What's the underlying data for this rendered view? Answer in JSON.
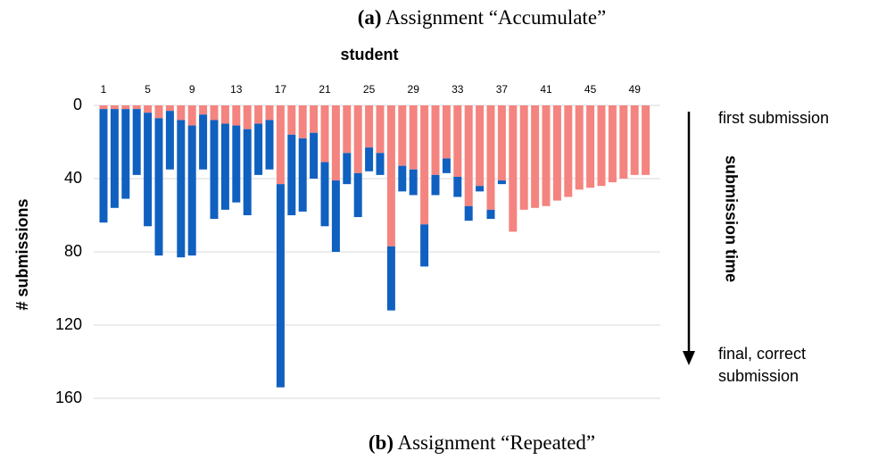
{
  "chart_data": {
    "type": "stacked_bar",
    "caption_top": {
      "label": "(a)",
      "text": "Assignment “Accumulate”"
    },
    "caption_bottom": {
      "label": "(b)",
      "text": "Assignment “Repeated”"
    },
    "x_label": "student",
    "y_label": "# submissions",
    "side_label": "submission time",
    "side_top": "first submission",
    "side_bottom": [
      "final, correct",
      "submission"
    ],
    "y_inverted": true,
    "grid": true,
    "categories": [
      "1",
      null,
      null,
      null,
      "5",
      null,
      null,
      null,
      "9",
      null,
      null,
      null,
      "13",
      null,
      null,
      null,
      "17",
      null,
      null,
      null,
      "21",
      null,
      null,
      null,
      "25",
      null,
      null,
      null,
      "29",
      null,
      null,
      null,
      "33",
      null,
      null,
      null,
      "37",
      null,
      null,
      null,
      "41",
      null,
      null,
      null,
      "45",
      null,
      null,
      null,
      "49",
      null
    ],
    "series": [
      {
        "color": "#f4847f",
        "values": [
          2,
          2,
          2,
          2,
          4,
          7,
          3,
          8,
          11,
          5,
          8,
          10,
          11,
          13,
          10,
          8,
          43,
          16,
          18,
          15,
          31,
          41,
          26,
          37,
          23,
          26,
          77,
          33,
          35,
          65,
          38,
          29,
          39,
          55,
          44,
          57,
          41,
          69,
          57,
          56,
          55,
          52,
          50,
          46,
          45,
          44,
          42,
          40,
          38,
          38
        ]
      },
      {
        "color": "#1060c0",
        "values": [
          62,
          54,
          49,
          36,
          62,
          75,
          32,
          75,
          71,
          30,
          54,
          47,
          42,
          47,
          28,
          27,
          111,
          44,
          40,
          25,
          35,
          39,
          17,
          24,
          13,
          12,
          35,
          14,
          14,
          23,
          11,
          8,
          11,
          8,
          3,
          5,
          2,
          0,
          0,
          0,
          0,
          0,
          0,
          0,
          0,
          0,
          0,
          0,
          0,
          0
        ]
      }
    ],
    "ylim": [
      0,
      160
    ],
    "yticks": [
      0,
      40,
      80,
      120,
      160
    ]
  }
}
